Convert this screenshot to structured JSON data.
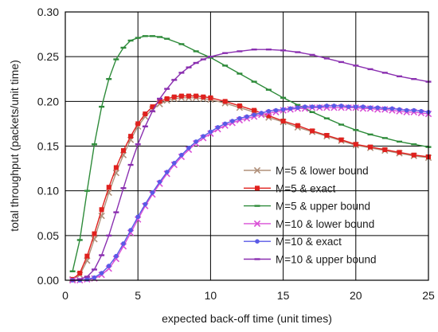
{
  "chart_data": {
    "type": "line",
    "xlabel": "expected back-off time (unit times)",
    "ylabel": "total throughput (packets/unit time)",
    "xlim": [
      0,
      25
    ],
    "ylim": [
      0,
      0.3
    ],
    "x_ticks": [
      "0",
      "5",
      "10",
      "15",
      "20",
      "25"
    ],
    "y_ticks": [
      "0.00",
      "0.05",
      "0.10",
      "0.15",
      "0.20",
      "0.25",
      "0.30"
    ],
    "grid": true,
    "legend_position": "bottom-right",
    "series": [
      {
        "name": "M=5 & lower bound",
        "color": "#b0907a",
        "marker": "x",
        "x": [
          0.5,
          1,
          1.5,
          2,
          2.5,
          3,
          3.5,
          4,
          4.5,
          5,
          5.5,
          6,
          6.5,
          7,
          7.5,
          8,
          8.5,
          9,
          9.5,
          10,
          11,
          12,
          13,
          14,
          15,
          16,
          17,
          18,
          19,
          20,
          21,
          22,
          23,
          24,
          25
        ],
        "y": [
          0.001,
          0.006,
          0.022,
          0.046,
          0.072,
          0.098,
          0.12,
          0.14,
          0.157,
          0.172,
          0.183,
          0.191,
          0.197,
          0.201,
          0.203,
          0.204,
          0.204,
          0.204,
          0.203,
          0.202,
          0.198,
          0.193,
          0.188,
          0.182,
          0.177,
          0.171,
          0.166,
          0.161,
          0.156,
          0.151,
          0.148,
          0.145,
          0.142,
          0.139,
          0.137
        ]
      },
      {
        "name": "M=5 & exact",
        "color": "#e0211e",
        "marker": "square",
        "x": [
          0.5,
          1,
          1.5,
          2,
          2.5,
          3,
          3.5,
          4,
          4.5,
          5,
          5.5,
          6,
          6.5,
          7,
          7.5,
          8,
          8.5,
          9,
          9.5,
          10,
          11,
          12,
          13,
          14,
          15,
          16,
          17,
          18,
          19,
          20,
          21,
          22,
          23,
          24,
          25
        ],
        "y": [
          0.001,
          0.008,
          0.027,
          0.052,
          0.079,
          0.104,
          0.126,
          0.145,
          0.161,
          0.175,
          0.186,
          0.194,
          0.2,
          0.203,
          0.205,
          0.206,
          0.206,
          0.206,
          0.205,
          0.204,
          0.2,
          0.195,
          0.19,
          0.184,
          0.178,
          0.173,
          0.167,
          0.162,
          0.157,
          0.152,
          0.149,
          0.146,
          0.143,
          0.14,
          0.138
        ]
      },
      {
        "name": "M=5 & upper bound",
        "color": "#2e8b3a",
        "marker": "dash",
        "x": [
          0.5,
          1,
          1.5,
          2,
          2.5,
          3,
          3.5,
          4,
          4.5,
          5,
          5.5,
          6,
          6.5,
          7,
          8,
          9,
          10,
          11,
          12,
          13,
          14,
          15,
          16,
          17,
          18,
          19,
          20,
          21,
          22,
          23,
          24,
          25
        ],
        "y": [
          0.01,
          0.045,
          0.1,
          0.152,
          0.194,
          0.225,
          0.247,
          0.26,
          0.268,
          0.271,
          0.273,
          0.273,
          0.272,
          0.27,
          0.264,
          0.256,
          0.249,
          0.24,
          0.231,
          0.222,
          0.213,
          0.204,
          0.196,
          0.188,
          0.181,
          0.174,
          0.168,
          0.163,
          0.159,
          0.155,
          0.152,
          0.149
        ]
      },
      {
        "name": "M=10 & lower bound",
        "color": "#d94fd6",
        "marker": "x",
        "x": [
          0.5,
          1,
          1.5,
          2,
          2.5,
          3,
          3.5,
          4,
          4.5,
          5,
          5.5,
          6,
          6.5,
          7,
          7.5,
          8,
          8.5,
          9,
          9.5,
          10,
          10.5,
          11,
          11.5,
          12,
          12.5,
          13,
          13.5,
          14,
          14.5,
          15,
          15.5,
          16,
          16.5,
          17,
          17.5,
          18,
          18.5,
          19,
          19.5,
          20,
          20.5,
          21,
          21.5,
          22,
          22.5,
          23,
          23.5,
          24,
          24.5,
          25
        ],
        "y": [
          0.0,
          0.0,
          0.001,
          0.002,
          0.006,
          0.013,
          0.024,
          0.038,
          0.053,
          0.068,
          0.083,
          0.096,
          0.108,
          0.119,
          0.129,
          0.138,
          0.146,
          0.153,
          0.159,
          0.164,
          0.169,
          0.173,
          0.176,
          0.179,
          0.181,
          0.183,
          0.185,
          0.187,
          0.188,
          0.19,
          0.191,
          0.192,
          0.192,
          0.193,
          0.193,
          0.193,
          0.193,
          0.193,
          0.193,
          0.193,
          0.192,
          0.192,
          0.191,
          0.191,
          0.19,
          0.189,
          0.188,
          0.188,
          0.187,
          0.186
        ]
      },
      {
        "name": "M=10 & exact",
        "color": "#5a5ae6",
        "marker": "circle",
        "x": [
          0.5,
          1,
          1.5,
          2,
          2.5,
          3,
          3.5,
          4,
          4.5,
          5,
          5.5,
          6,
          6.5,
          7,
          7.5,
          8,
          8.5,
          9,
          9.5,
          10,
          10.5,
          11,
          11.5,
          12,
          12.5,
          13,
          13.5,
          14,
          14.5,
          15,
          15.5,
          16,
          16.5,
          17,
          17.5,
          18,
          18.5,
          19,
          19.5,
          20,
          20.5,
          21,
          21.5,
          22,
          22.5,
          23,
          23.5,
          24,
          24.5,
          25
        ],
        "y": [
          0.0,
          0.0,
          0.001,
          0.003,
          0.008,
          0.016,
          0.027,
          0.041,
          0.056,
          0.071,
          0.085,
          0.098,
          0.11,
          0.121,
          0.131,
          0.14,
          0.148,
          0.155,
          0.161,
          0.166,
          0.171,
          0.175,
          0.178,
          0.181,
          0.183,
          0.185,
          0.187,
          0.189,
          0.19,
          0.191,
          0.192,
          0.193,
          0.194,
          0.194,
          0.194,
          0.195,
          0.195,
          0.195,
          0.194,
          0.194,
          0.194,
          0.193,
          0.193,
          0.192,
          0.192,
          0.191,
          0.19,
          0.19,
          0.189,
          0.188
        ]
      },
      {
        "name": "M=10 & upper bound",
        "color": "#8a2fb0",
        "marker": "dash",
        "x": [
          0.5,
          1,
          1.5,
          2,
          2.5,
          3,
          3.5,
          4,
          4.5,
          5,
          5.5,
          6,
          6.5,
          7,
          7.5,
          8,
          8.5,
          9,
          9.5,
          10,
          11,
          12,
          13,
          14,
          15,
          16,
          17,
          18,
          19,
          20,
          21,
          22,
          23,
          24,
          25
        ],
        "y": [
          0.0,
          0.001,
          0.004,
          0.012,
          0.028,
          0.05,
          0.076,
          0.103,
          0.129,
          0.152,
          0.172,
          0.189,
          0.203,
          0.214,
          0.224,
          0.232,
          0.238,
          0.243,
          0.247,
          0.25,
          0.254,
          0.256,
          0.258,
          0.258,
          0.257,
          0.255,
          0.252,
          0.248,
          0.244,
          0.24,
          0.236,
          0.232,
          0.228,
          0.225,
          0.222
        ]
      }
    ]
  }
}
